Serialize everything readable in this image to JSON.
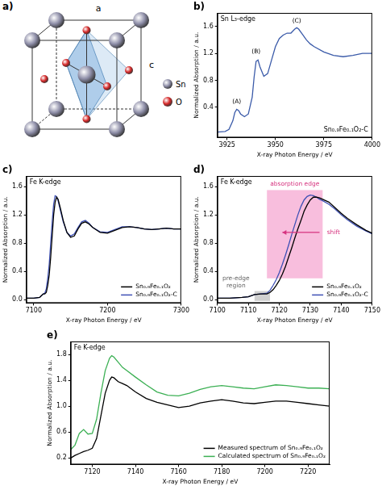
{
  "diagram": {
    "panel": "a)",
    "axis_labels": [
      "a",
      "c"
    ],
    "legend": [
      {
        "name": "Sn",
        "color": "#8e8ea8"
      },
      {
        "name": "O",
        "color": "#d62828"
      }
    ]
  },
  "chart_data": [
    {
      "panel": "b)",
      "type": "line",
      "inset_title": "Sn L₃-edge",
      "sample_label": "Sn₀.₉Fe₀.₁O₂-C",
      "x_label": "X-ray Photon Energy / eV",
      "y_label": "Normalized Absorption / a.u.",
      "x": [
        3920,
        3924,
        3926,
        3928,
        3929,
        3930,
        3931,
        3932,
        3934,
        3936,
        3938,
        3939,
        3940,
        3941,
        3942,
        3944,
        3946,
        3948,
        3950,
        3952,
        3954,
        3956,
        3958,
        3960,
        3961,
        3962,
        3964,
        3966,
        3968,
        3970,
        3975,
        3980,
        3985,
        3990,
        3995,
        4000
      ],
      "series": [
        {
          "color": "#3b5ba9",
          "values": [
            0.03,
            0.04,
            0.07,
            0.2,
            0.32,
            0.37,
            0.35,
            0.3,
            0.26,
            0.3,
            0.55,
            0.85,
            1.08,
            1.1,
            1.0,
            0.86,
            0.9,
            1.1,
            1.3,
            1.42,
            1.47,
            1.5,
            1.5,
            1.56,
            1.58,
            1.56,
            1.48,
            1.4,
            1.34,
            1.3,
            1.22,
            1.17,
            1.15,
            1.17,
            1.2,
            1.2
          ]
        }
      ],
      "xlim": [
        3920,
        4000
      ],
      "xticks": [
        3925,
        3950,
        3975,
        4000
      ],
      "ylim": [
        -0.05,
        1.8
      ],
      "yticks": [
        0.4,
        0.8,
        1.2,
        1.6
      ],
      "grid": false,
      "annotations": [
        {
          "text": "(A)",
          "x": 3930,
          "y": 0.48,
          "color": "#000000"
        },
        {
          "text": "(B)",
          "x": 3940,
          "y": 1.22,
          "color": "#000000"
        },
        {
          "text": "(C)",
          "x": 3961,
          "y": 1.68,
          "color": "#000000"
        }
      ]
    },
    {
      "panel": "c)",
      "type": "line",
      "inset_title": "Fe K-edge",
      "x_label": "X-ray Photon Energy / eV",
      "y_label": "Normalized Absorption / a.u.",
      "x": [
        7090,
        7100,
        7108,
        7111,
        7113,
        7115,
        7117,
        7119,
        7121,
        7123,
        7125,
        7127,
        7129,
        7131,
        7133,
        7136,
        7140,
        7145,
        7150,
        7155,
        7160,
        7165,
        7170,
        7175,
        7180,
        7190,
        7200,
        7210,
        7220,
        7230,
        7240,
        7250,
        7260,
        7270,
        7280,
        7290,
        7300
      ],
      "series": [
        {
          "name": "Sn₀.₉Fe₀.₁O₂",
          "color": "#000000",
          "values": [
            0.02,
            0.02,
            0.03,
            0.06,
            0.08,
            0.08,
            0.1,
            0.2,
            0.35,
            0.6,
            0.9,
            1.2,
            1.38,
            1.45,
            1.42,
            1.3,
            1.12,
            0.95,
            0.88,
            0.9,
            1.0,
            1.08,
            1.1,
            1.07,
            1.02,
            0.95,
            0.94,
            0.98,
            1.02,
            1.03,
            1.02,
            1.0,
            0.99,
            1.0,
            1.01,
            1.0,
            1.0
          ]
        },
        {
          "name": "Sn₀.₉Fe₀.₁O₂-C",
          "color": "#3f51b5",
          "values": [
            0.02,
            0.02,
            0.03,
            0.06,
            0.08,
            0.09,
            0.15,
            0.3,
            0.5,
            0.8,
            1.1,
            1.35,
            1.47,
            1.46,
            1.4,
            1.27,
            1.1,
            0.95,
            0.9,
            0.93,
            1.02,
            1.1,
            1.12,
            1.08,
            1.02,
            0.96,
            0.95,
            0.99,
            1.03,
            1.03,
            1.02,
            1.0,
            0.99,
            1.0,
            1.01,
            1.0,
            1.0
          ]
        }
      ],
      "xlim": [
        7090,
        7300
      ],
      "xticks": [
        7100,
        7200,
        7300
      ],
      "ylim": [
        -0.05,
        1.75
      ],
      "yticks": [
        {
          "value": 0,
          "label": "0.0"
        },
        0.4,
        0.8,
        1.2,
        1.6
      ],
      "grid": false,
      "legend": "lower right"
    },
    {
      "panel": "d)",
      "type": "line",
      "inset_title": "Fe K-edge",
      "x_label": "X-ray Photon Energy / eV",
      "y_label": "Normalized Absorption / a.u.",
      "x": [
        7100,
        7104,
        7108,
        7110,
        7112,
        7114,
        7116,
        7117,
        7118,
        7119,
        7120,
        7121,
        7122,
        7123,
        7124,
        7125,
        7126,
        7127,
        7128,
        7129,
        7130,
        7131,
        7132,
        7133,
        7134,
        7136,
        7138,
        7140,
        7142,
        7145,
        7148,
        7150
      ],
      "series": [
        {
          "name": "Sn₀.₉Fe₀.₁O₂",
          "color": "#000000",
          "values": [
            0.02,
            0.02,
            0.03,
            0.04,
            0.07,
            0.08,
            0.08,
            0.1,
            0.14,
            0.2,
            0.27,
            0.36,
            0.47,
            0.6,
            0.73,
            0.87,
            1.0,
            1.12,
            1.25,
            1.34,
            1.41,
            1.45,
            1.45,
            1.44,
            1.42,
            1.38,
            1.3,
            1.22,
            1.15,
            1.06,
            0.98,
            0.94
          ]
        },
        {
          "name": "Sn₀.₉Fe₀.₁O₂-C",
          "color": "#3f51b5",
          "values": [
            0.02,
            0.02,
            0.03,
            0.04,
            0.07,
            0.08,
            0.09,
            0.13,
            0.2,
            0.28,
            0.38,
            0.5,
            0.63,
            0.77,
            0.92,
            1.06,
            1.2,
            1.32,
            1.41,
            1.46,
            1.48,
            1.47,
            1.45,
            1.42,
            1.4,
            1.35,
            1.28,
            1.2,
            1.13,
            1.04,
            0.97,
            0.93
          ]
        }
      ],
      "xlim": [
        7100,
        7150
      ],
      "xticks": [
        7100,
        7110,
        7120,
        7130,
        7140,
        7150
      ],
      "ylim": [
        -0.05,
        1.75
      ],
      "yticks": [
        {
          "value": 0,
          "label": "0.0"
        },
        0.4,
        0.8,
        1.2,
        1.6
      ],
      "grid": false,
      "legend": "lower right",
      "regions": [
        {
          "x": [
            7116,
            7134
          ],
          "y": [
            0.3,
            1.55
          ],
          "color": "rgba(240,110,180,0.45)"
        },
        {
          "x": [
            7112,
            7117
          ],
          "y": [
            -0.02,
            0.12
          ],
          "color": "rgba(150,150,150,0.45)"
        }
      ],
      "arrows": [
        {
          "x": [
            7133,
            7121
          ],
          "y": 0.95,
          "color": "#d6337f"
        }
      ],
      "annotations": [
        {
          "text": "absorption edge",
          "x": 7125,
          "y": 1.64,
          "color": "#d6337f"
        },
        {
          "text": "shift",
          "x": 7137.5,
          "y": 0.95,
          "color": "#d6337f"
        },
        {
          "text": "pre-edge region",
          "x": 7106,
          "y": 0.25,
          "color": "#666666"
        }
      ]
    },
    {
      "panel": "e)",
      "type": "line",
      "inset_title": "Fe K-edge",
      "x_label": "X-ray Photon Energy / eV",
      "y_label": "Normalized Absorption / a.u.",
      "x": [
        7110,
        7112,
        7114,
        7116,
        7118,
        7120,
        7122,
        7124,
        7126,
        7128,
        7129,
        7130,
        7132,
        7134,
        7136,
        7140,
        7145,
        7150,
        7155,
        7160,
        7165,
        7170,
        7175,
        7180,
        7185,
        7190,
        7195,
        7200,
        7205,
        7210,
        7215,
        7220,
        7225,
        7230
      ],
      "series": [
        {
          "name": "Measured spectrum of Sn₀.₉Fe₀.₁O₂",
          "color": "#000000",
          "values": [
            0.2,
            0.24,
            0.27,
            0.3,
            0.32,
            0.35,
            0.5,
            0.85,
            1.2,
            1.4,
            1.45,
            1.44,
            1.38,
            1.35,
            1.32,
            1.22,
            1.12,
            1.06,
            1.02,
            0.98,
            1.0,
            1.05,
            1.08,
            1.1,
            1.08,
            1.05,
            1.04,
            1.06,
            1.08,
            1.08,
            1.06,
            1.04,
            1.02,
            1.0
          ]
        },
        {
          "name": "Calculated spectrum of Sn₀.₉Fe₀.₁O₂",
          "color": "#3cb054",
          "values": [
            0.33,
            0.4,
            0.58,
            0.64,
            0.57,
            0.58,
            0.8,
            1.2,
            1.55,
            1.74,
            1.78,
            1.76,
            1.68,
            1.6,
            1.55,
            1.45,
            1.33,
            1.22,
            1.17,
            1.16,
            1.2,
            1.26,
            1.3,
            1.32,
            1.3,
            1.28,
            1.27,
            1.3,
            1.33,
            1.32,
            1.3,
            1.28,
            1.28,
            1.27
          ]
        }
      ],
      "xlim": [
        7110,
        7230
      ],
      "xticks": [
        7120,
        7140,
        7160,
        7180,
        7200,
        7220
      ],
      "ylim": [
        0.1,
        2.0
      ],
      "yticks": [
        0.2,
        0.6,
        {
          "value": 1,
          "label": "1.0"
        },
        1.4,
        1.8
      ],
      "grid": false,
      "legend": "lower right"
    }
  ]
}
